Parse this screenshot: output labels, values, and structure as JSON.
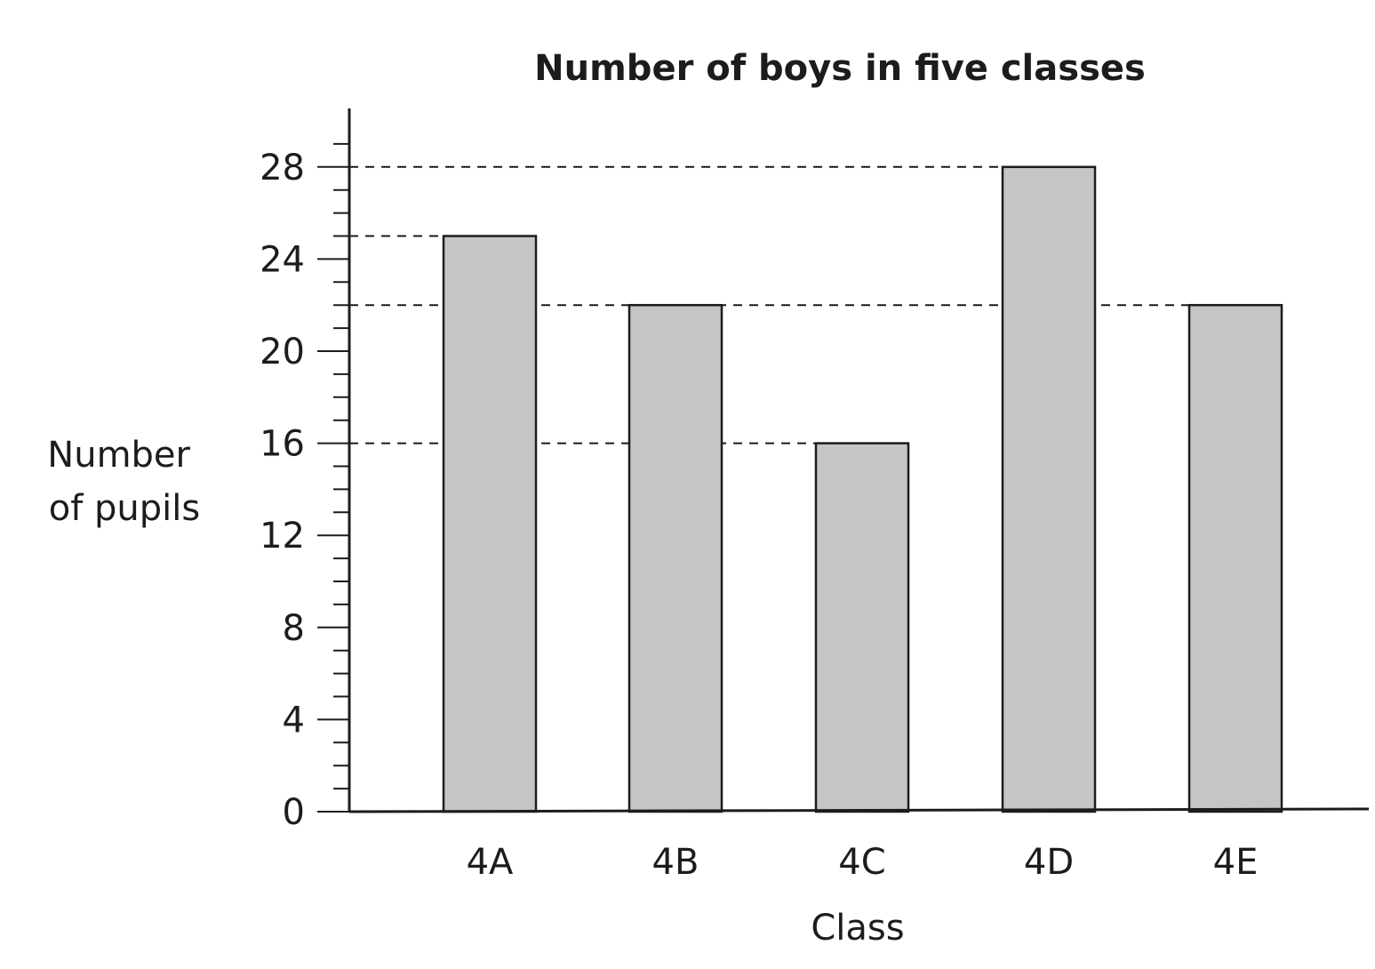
{
  "chart_data": {
    "type": "bar",
    "title": "Number of boys in five classes",
    "xlabel": "Class",
    "ylabel": [
      "Number",
      "of pupils"
    ],
    "categories": [
      "4A",
      "4B",
      "4C",
      "4D",
      "4E"
    ],
    "values": [
      25,
      22,
      16,
      28,
      22
    ],
    "ylim": [
      0,
      30
    ],
    "yticks": [
      0,
      4,
      8,
      12,
      16,
      20,
      24,
      28
    ],
    "minor_tick_step": 1,
    "guide_lines": [
      28,
      25,
      22,
      16
    ],
    "bar_color": "#c5c5c7",
    "grid": false,
    "legend": "none"
  }
}
